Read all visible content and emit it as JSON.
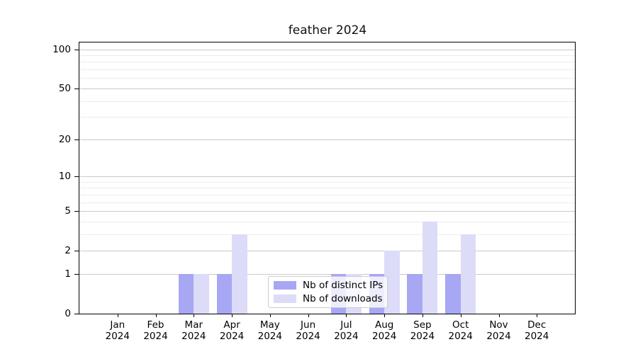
{
  "chart_data": {
    "type": "bar",
    "title": "feather 2024",
    "categories": [
      "Jan",
      "Feb",
      "Mar",
      "Apr",
      "May",
      "Jun",
      "Jul",
      "Aug",
      "Sep",
      "Oct",
      "Nov",
      "Dec"
    ],
    "year": "2024",
    "series": [
      {
        "name": "Nb of distinct IPs",
        "color": "#a7a7f4",
        "values": [
          0,
          0,
          1,
          1,
          0,
          0,
          1,
          1,
          1,
          1,
          0,
          0
        ]
      },
      {
        "name": "Nb of downloads",
        "color": "#dcdcf8",
        "values": [
          0,
          0,
          1,
          3,
          0,
          0,
          1,
          2,
          4,
          3,
          0,
          0
        ]
      }
    ],
    "yticks": [
      0,
      1,
      2,
      5,
      10,
      20,
      50,
      100
    ],
    "minor_gridlines": [
      3,
      4,
      6,
      7,
      8,
      9,
      30,
      40,
      60,
      70,
      80,
      90
    ],
    "scale": "log1p",
    "ylim": [
      0,
      113
    ],
    "grid": true,
    "legend_position": "lower center"
  },
  "colors": {
    "major_grid": "#c9c9c9",
    "minor_grid": "#ececec",
    "axis": "#000000",
    "legend_border": "#cccccc",
    "background": "#ffffff"
  }
}
